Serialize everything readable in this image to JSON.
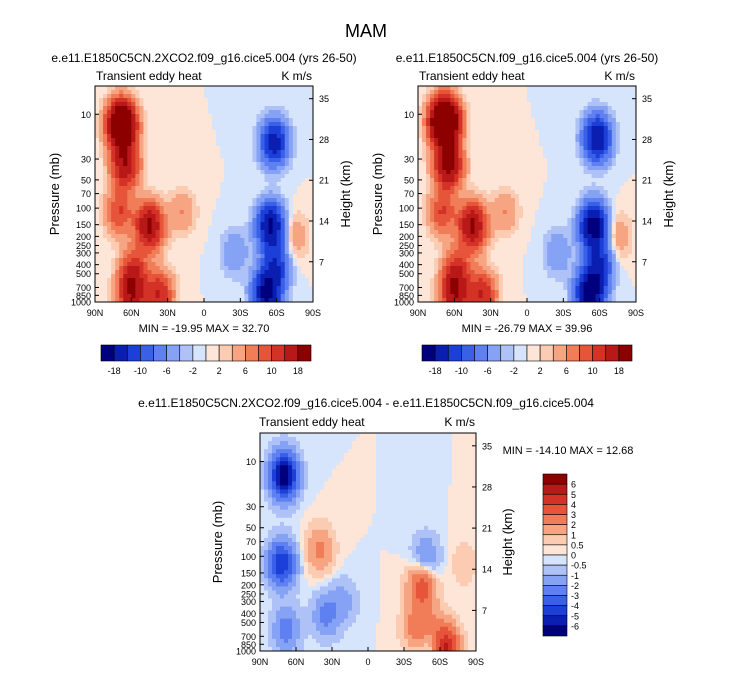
{
  "figure": {
    "title": "MAM"
  },
  "colors": {
    "neg": [
      "#00007f",
      "#0a1fb2",
      "#1c3fd8",
      "#3a60e8",
      "#5e80f0",
      "#86a2f4",
      "#aec2f8",
      "#d6e4fc"
    ],
    "pos": [
      "#fde6d8",
      "#fbcbb2",
      "#f7a482",
      "#f07c58",
      "#e6553a",
      "#d43227",
      "#b81818",
      "#8c0000"
    ]
  },
  "chart_data": [
    {
      "type": "heatmap",
      "panel": "top-left",
      "title": "e.e11.E1850C5CN.2XCO2.f09_g16.cice5.004 (yrs 26-50)",
      "left_label": "Transient eddy heat",
      "right_label": "K m/s",
      "xlabel": "",
      "ylabel": "Pressure (mb)",
      "ylabel_right": "Height (km)",
      "x_ticks": [
        "90N",
        "60N",
        "30N",
        "0",
        "30S",
        "60S",
        "90S"
      ],
      "y_ticks": [
        "10",
        "30",
        "50",
        "70",
        "100",
        "150",
        "200",
        "250",
        "300",
        "400",
        "500",
        "700",
        "850",
        "1000"
      ],
      "height_ticks": [
        "35",
        "28",
        "21",
        "14",
        "7"
      ],
      "stats": "MIN = -19.95  MAX = 32.70",
      "min": -19.95,
      "max": 32.7,
      "xlim": [
        90,
        -90
      ],
      "ylim": [
        1000,
        5
      ],
      "features": [
        {
          "lat": 68,
          "p": 13,
          "value": 28
        },
        {
          "lat": 65,
          "p": 35,
          "value": 13
        },
        {
          "lat": 45,
          "p": 155,
          "value": 15
        },
        {
          "lat": 70,
          "p": 110,
          "value": 7
        },
        {
          "lat": 60,
          "p": 820,
          "value": 12
        },
        {
          "lat": 37,
          "p": 830,
          "value": 10
        },
        {
          "lat": 58,
          "p": 470,
          "value": 8
        },
        {
          "lat": 18,
          "p": 110,
          "value": 3
        },
        {
          "lat": -58,
          "p": 20,
          "value": -12
        },
        {
          "lat": -55,
          "p": 155,
          "value": -15
        },
        {
          "lat": -52,
          "p": 800,
          "value": -16
        },
        {
          "lat": -60,
          "p": 400,
          "value": -8
        },
        {
          "lat": -25,
          "p": 300,
          "value": -3
        },
        {
          "lat": -75,
          "p": 200,
          "value": 3
        }
      ],
      "colorbar": {
        "orientation": "horizontal",
        "labels": [
          "-18",
          "-10",
          "-6",
          "-2",
          "2",
          "6",
          "10",
          "18"
        ]
      }
    },
    {
      "type": "heatmap",
      "panel": "top-right",
      "title": "e.e11.E1850C5CN.f09_g16.cice5.004 (yrs 26-50)",
      "left_label": "Transient eddy heat",
      "right_label": "K m/s",
      "xlabel": "",
      "ylabel": "Pressure (mb)",
      "ylabel_right": "Height (km)",
      "x_ticks": [
        "90N",
        "60N",
        "30N",
        "0",
        "30S",
        "60S",
        "90S"
      ],
      "y_ticks": [
        "10",
        "30",
        "50",
        "70",
        "100",
        "150",
        "200",
        "250",
        "300",
        "400",
        "500",
        "700",
        "850",
        "1000"
      ],
      "height_ticks": [
        "35",
        "28",
        "21",
        "14",
        "7"
      ],
      "stats": "MIN = -26.79  MAX = 39.96",
      "min": -26.79,
      "max": 39.96,
      "xlim": [
        90,
        -90
      ],
      "ylim": [
        1000,
        5
      ],
      "features": [
        {
          "lat": 68,
          "p": 12,
          "value": 34
        },
        {
          "lat": 65,
          "p": 35,
          "value": 16
        },
        {
          "lat": 45,
          "p": 155,
          "value": 15
        },
        {
          "lat": 70,
          "p": 110,
          "value": 7
        },
        {
          "lat": 60,
          "p": 820,
          "value": 12
        },
        {
          "lat": 37,
          "p": 830,
          "value": 10
        },
        {
          "lat": 58,
          "p": 470,
          "value": 8
        },
        {
          "lat": 18,
          "p": 110,
          "value": 3
        },
        {
          "lat": -58,
          "p": 18,
          "value": -14
        },
        {
          "lat": -55,
          "p": 155,
          "value": -17
        },
        {
          "lat": -52,
          "p": 800,
          "value": -18
        },
        {
          "lat": -60,
          "p": 400,
          "value": -9
        },
        {
          "lat": -25,
          "p": 300,
          "value": -3
        },
        {
          "lat": -75,
          "p": 200,
          "value": 3
        }
      ],
      "colorbar": {
        "orientation": "horizontal",
        "labels": [
          "-18",
          "-10",
          "-6",
          "-2",
          "2",
          "6",
          "10",
          "18"
        ]
      }
    },
    {
      "type": "heatmap",
      "panel": "bottom",
      "title": "e.e11.E1850C5CN.2XCO2.f09_g16.cice5.004 - e.e11.E1850C5CN.f09_g16.cice5.004",
      "left_label": "Transient eddy heat",
      "right_label": "K m/s",
      "xlabel": "",
      "ylabel": "Pressure (mb)",
      "ylabel_right": "Height (km)",
      "x_ticks": [
        "90N",
        "60N",
        "30N",
        "0",
        "30S",
        "60S",
        "90S"
      ],
      "y_ticks": [
        "10",
        "30",
        "50",
        "70",
        "100",
        "150",
        "200",
        "250",
        "300",
        "400",
        "500",
        "700",
        "850",
        "1000"
      ],
      "height_ticks": [
        "35",
        "28",
        "21",
        "14",
        "7"
      ],
      "stats": "MIN = -14.10  MAX =  12.68",
      "min": -14.1,
      "max": 12.68,
      "xlim": [
        90,
        -90
      ],
      "ylim": [
        1000,
        5
      ],
      "features": [
        {
          "lat": 70,
          "p": 14,
          "value": -6.5
        },
        {
          "lat": 72,
          "p": 120,
          "value": -4.5
        },
        {
          "lat": 68,
          "p": 600,
          "value": -2
        },
        {
          "lat": 40,
          "p": 85,
          "value": 1.8
        },
        {
          "lat": 35,
          "p": 420,
          "value": -1.8
        },
        {
          "lat": 20,
          "p": 300,
          "value": -1
        },
        {
          "lat": -45,
          "p": 200,
          "value": 3.5
        },
        {
          "lat": -40,
          "p": 550,
          "value": 2
        },
        {
          "lat": -55,
          "p": 600,
          "value": 1.5
        },
        {
          "lat": -65,
          "p": 960,
          "value": 5
        },
        {
          "lat": -48,
          "p": 110,
          "value": -2
        },
        {
          "lat": -80,
          "p": 120,
          "value": 0.6
        },
        {
          "lat": -55,
          "p": 900,
          "value": -1.5
        }
      ],
      "colorbar": {
        "orientation": "vertical",
        "labels": [
          "6",
          "5",
          "4",
          "3",
          "2",
          "1",
          "0.5",
          "0",
          "-0.5",
          "-1",
          "-2",
          "-3",
          "-4",
          "-5",
          "-6"
        ]
      }
    }
  ]
}
